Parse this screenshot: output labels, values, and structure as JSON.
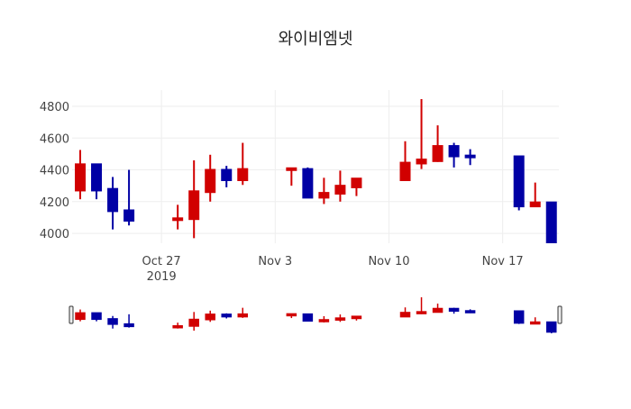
{
  "chart_data": {
    "type": "candlestick",
    "title": "와이비엠넷",
    "xlabel": "",
    "ylabel": "",
    "ylim": [
      3938,
      4902
    ],
    "xlim": [
      "2019-10-21T12:00",
      "2019-11-20T11:00"
    ],
    "y_ticks": [
      4000,
      4200,
      4400,
      4600,
      4800
    ],
    "x_ticks": [
      {
        "date": "2019-10-27",
        "label": "Oct 27",
        "sublabel": "2019"
      },
      {
        "date": "2019-11-03",
        "label": "Nov 3"
      },
      {
        "date": "2019-11-10",
        "label": "Nov 10"
      },
      {
        "date": "2019-11-17",
        "label": "Nov 17"
      }
    ],
    "grid": true,
    "increasing_color": "#d10000",
    "decreasing_color": "#0000a5",
    "rangeslider": true,
    "candles": [
      {
        "date": "2019-10-22",
        "open": 4270,
        "high": 4525,
        "low": 4215,
        "close": 4435
      },
      {
        "date": "2019-10-23",
        "open": 4435,
        "high": 4435,
        "low": 4215,
        "close": 4270
      },
      {
        "date": "2019-10-24",
        "open": 4280,
        "high": 4355,
        "low": 4025,
        "close": 4140
      },
      {
        "date": "2019-10-25",
        "open": 4145,
        "high": 4400,
        "low": 4050,
        "close": 4080
      },
      {
        "date": "2019-10-28",
        "open": 4085,
        "high": 4180,
        "low": 4025,
        "close": 4095
      },
      {
        "date": "2019-10-29",
        "open": 4090,
        "high": 4460,
        "low": 3970,
        "close": 4265
      },
      {
        "date": "2019-10-30",
        "open": 4260,
        "high": 4495,
        "low": 4200,
        "close": 4400
      },
      {
        "date": "2019-10-31",
        "open": 4400,
        "high": 4425,
        "low": 4290,
        "close": 4335
      },
      {
        "date": "2019-11-01",
        "open": 4335,
        "high": 4570,
        "low": 4305,
        "close": 4405
      },
      {
        "date": "2019-11-04",
        "open": 4400,
        "high": 4410,
        "low": 4300,
        "close": 4410
      },
      {
        "date": "2019-11-05",
        "open": 4405,
        "high": 4415,
        "low": 4225,
        "close": 4225
      },
      {
        "date": "2019-11-06",
        "open": 4225,
        "high": 4350,
        "low": 4185,
        "close": 4255
      },
      {
        "date": "2019-11-07",
        "open": 4250,
        "high": 4395,
        "low": 4200,
        "close": 4300
      },
      {
        "date": "2019-11-08",
        "open": 4290,
        "high": 4345,
        "low": 4235,
        "close": 4345
      },
      {
        "date": "2019-11-11",
        "open": 4335,
        "high": 4580,
        "low": 4335,
        "close": 4445
      },
      {
        "date": "2019-11-12",
        "open": 4440,
        "high": 4845,
        "low": 4405,
        "close": 4465
      },
      {
        "date": "2019-11-13",
        "open": 4455,
        "high": 4680,
        "low": 4450,
        "close": 4550
      },
      {
        "date": "2019-11-14",
        "open": 4550,
        "high": 4570,
        "low": 4415,
        "close": 4485
      },
      {
        "date": "2019-11-15",
        "open": 4490,
        "high": 4530,
        "low": 4430,
        "close": 4480
      },
      {
        "date": "2019-11-18",
        "open": 4485,
        "high": 4485,
        "low": 4145,
        "close": 4170
      },
      {
        "date": "2019-11-19",
        "open": 4170,
        "high": 4320,
        "low": 4170,
        "close": 4195
      },
      {
        "date": "2019-11-20",
        "open": 4195,
        "high": 4195,
        "low": 3900,
        "close": 3935
      }
    ]
  }
}
